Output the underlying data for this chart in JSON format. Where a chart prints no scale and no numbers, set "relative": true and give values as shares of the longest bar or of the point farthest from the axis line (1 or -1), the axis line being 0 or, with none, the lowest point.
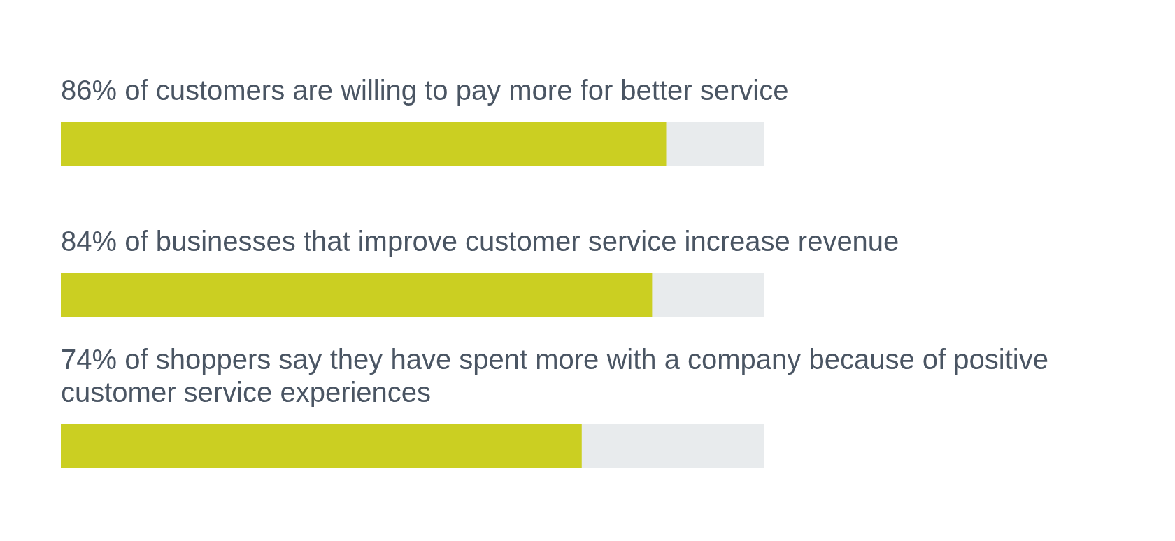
{
  "chart_data": {
    "type": "bar",
    "orientation": "horizontal",
    "stacked": true,
    "relative": true,
    "categories": [
      "86% of customers are willing to pay more for better service",
      "84% of businesses that improve customer service increase revenue",
      "74% of shoppers say they have spent more with a company because of positive customer service experiences"
    ],
    "series": [
      {
        "color": "#cbcf22",
        "values": [
          0.86,
          0.84,
          0.74
        ]
      },
      {
        "color": "#e8ebed",
        "values": [
          0.14,
          0.16,
          0.26
        ]
      }
    ],
    "tick_labels": "y",
    "legend": false
  }
}
